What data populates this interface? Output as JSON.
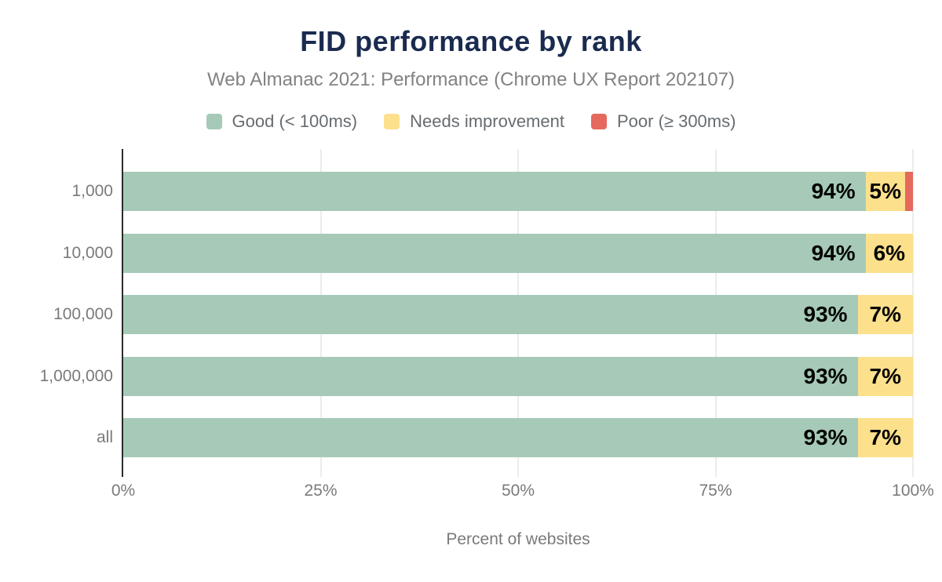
{
  "chart_data": {
    "type": "bar",
    "stacked": true,
    "orientation": "horizontal",
    "title": "FID performance by rank",
    "subtitle": "Web Almanac 2021: Performance (Chrome UX Report 202107)",
    "categories": [
      "1,000",
      "10,000",
      "100,000",
      "1,000,000",
      "all"
    ],
    "series": [
      {
        "name": "Good (< 100ms)",
        "color": "#a6cab7",
        "values": [
          94,
          94,
          93,
          93,
          93
        ]
      },
      {
        "name": "Needs improvement",
        "color": "#fce08c",
        "values": [
          5,
          6,
          7,
          7,
          7
        ]
      },
      {
        "name": "Poor (≥ 300ms)",
        "color": "#e5695d",
        "values": [
          1,
          0,
          0,
          0,
          0
        ]
      }
    ],
    "xlabel": "Percent of websites",
    "ylabel": "",
    "x_ticks": [
      "0%",
      "25%",
      "50%",
      "75%",
      "100%"
    ],
    "x_tick_values": [
      0,
      25,
      50,
      75,
      100
    ],
    "xlim": [
      0,
      100
    ],
    "grid": "vertical-light",
    "legend_position": "top",
    "data_label_format": "{value}%"
  },
  "colors": {
    "background": "#ffffff",
    "title": "#1a2b4f",
    "subtitle": "#828282",
    "legend_text": "#666c70",
    "axis_line": "#2b2b2b",
    "gridline": "#ececec",
    "tick_text": "#7a7a7a",
    "data_label": "#000000"
  }
}
